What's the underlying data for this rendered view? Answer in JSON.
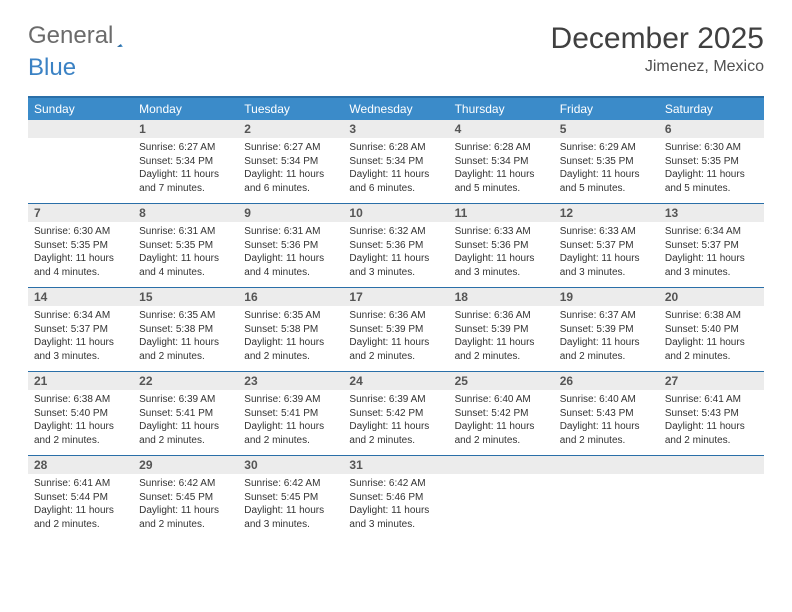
{
  "brand": {
    "word1": "General",
    "word2": "Blue"
  },
  "title": "December 2025",
  "location": "Jimenez, Mexico",
  "colors": {
    "header_bg": "#3b8bc9",
    "header_text": "#ffffff",
    "border": "#2a6fa8",
    "daynum_bg": "#ececec",
    "brand_accent": "#3b82c4"
  },
  "day_headers": [
    "Sunday",
    "Monday",
    "Tuesday",
    "Wednesday",
    "Thursday",
    "Friday",
    "Saturday"
  ],
  "weeks": [
    [
      null,
      {
        "n": "1",
        "sr": "Sunrise: 6:27 AM",
        "ss": "Sunset: 5:34 PM",
        "dl": "Daylight: 11 hours and 7 minutes."
      },
      {
        "n": "2",
        "sr": "Sunrise: 6:27 AM",
        "ss": "Sunset: 5:34 PM",
        "dl": "Daylight: 11 hours and 6 minutes."
      },
      {
        "n": "3",
        "sr": "Sunrise: 6:28 AM",
        "ss": "Sunset: 5:34 PM",
        "dl": "Daylight: 11 hours and 6 minutes."
      },
      {
        "n": "4",
        "sr": "Sunrise: 6:28 AM",
        "ss": "Sunset: 5:34 PM",
        "dl": "Daylight: 11 hours and 5 minutes."
      },
      {
        "n": "5",
        "sr": "Sunrise: 6:29 AM",
        "ss": "Sunset: 5:35 PM",
        "dl": "Daylight: 11 hours and 5 minutes."
      },
      {
        "n": "6",
        "sr": "Sunrise: 6:30 AM",
        "ss": "Sunset: 5:35 PM",
        "dl": "Daylight: 11 hours and 5 minutes."
      }
    ],
    [
      {
        "n": "7",
        "sr": "Sunrise: 6:30 AM",
        "ss": "Sunset: 5:35 PM",
        "dl": "Daylight: 11 hours and 4 minutes."
      },
      {
        "n": "8",
        "sr": "Sunrise: 6:31 AM",
        "ss": "Sunset: 5:35 PM",
        "dl": "Daylight: 11 hours and 4 minutes."
      },
      {
        "n": "9",
        "sr": "Sunrise: 6:31 AM",
        "ss": "Sunset: 5:36 PM",
        "dl": "Daylight: 11 hours and 4 minutes."
      },
      {
        "n": "10",
        "sr": "Sunrise: 6:32 AM",
        "ss": "Sunset: 5:36 PM",
        "dl": "Daylight: 11 hours and 3 minutes."
      },
      {
        "n": "11",
        "sr": "Sunrise: 6:33 AM",
        "ss": "Sunset: 5:36 PM",
        "dl": "Daylight: 11 hours and 3 minutes."
      },
      {
        "n": "12",
        "sr": "Sunrise: 6:33 AM",
        "ss": "Sunset: 5:37 PM",
        "dl": "Daylight: 11 hours and 3 minutes."
      },
      {
        "n": "13",
        "sr": "Sunrise: 6:34 AM",
        "ss": "Sunset: 5:37 PM",
        "dl": "Daylight: 11 hours and 3 minutes."
      }
    ],
    [
      {
        "n": "14",
        "sr": "Sunrise: 6:34 AM",
        "ss": "Sunset: 5:37 PM",
        "dl": "Daylight: 11 hours and 3 minutes."
      },
      {
        "n": "15",
        "sr": "Sunrise: 6:35 AM",
        "ss": "Sunset: 5:38 PM",
        "dl": "Daylight: 11 hours and 2 minutes."
      },
      {
        "n": "16",
        "sr": "Sunrise: 6:35 AM",
        "ss": "Sunset: 5:38 PM",
        "dl": "Daylight: 11 hours and 2 minutes."
      },
      {
        "n": "17",
        "sr": "Sunrise: 6:36 AM",
        "ss": "Sunset: 5:39 PM",
        "dl": "Daylight: 11 hours and 2 minutes."
      },
      {
        "n": "18",
        "sr": "Sunrise: 6:36 AM",
        "ss": "Sunset: 5:39 PM",
        "dl": "Daylight: 11 hours and 2 minutes."
      },
      {
        "n": "19",
        "sr": "Sunrise: 6:37 AM",
        "ss": "Sunset: 5:39 PM",
        "dl": "Daylight: 11 hours and 2 minutes."
      },
      {
        "n": "20",
        "sr": "Sunrise: 6:38 AM",
        "ss": "Sunset: 5:40 PM",
        "dl": "Daylight: 11 hours and 2 minutes."
      }
    ],
    [
      {
        "n": "21",
        "sr": "Sunrise: 6:38 AM",
        "ss": "Sunset: 5:40 PM",
        "dl": "Daylight: 11 hours and 2 minutes."
      },
      {
        "n": "22",
        "sr": "Sunrise: 6:39 AM",
        "ss": "Sunset: 5:41 PM",
        "dl": "Daylight: 11 hours and 2 minutes."
      },
      {
        "n": "23",
        "sr": "Sunrise: 6:39 AM",
        "ss": "Sunset: 5:41 PM",
        "dl": "Daylight: 11 hours and 2 minutes."
      },
      {
        "n": "24",
        "sr": "Sunrise: 6:39 AM",
        "ss": "Sunset: 5:42 PM",
        "dl": "Daylight: 11 hours and 2 minutes."
      },
      {
        "n": "25",
        "sr": "Sunrise: 6:40 AM",
        "ss": "Sunset: 5:42 PM",
        "dl": "Daylight: 11 hours and 2 minutes."
      },
      {
        "n": "26",
        "sr": "Sunrise: 6:40 AM",
        "ss": "Sunset: 5:43 PM",
        "dl": "Daylight: 11 hours and 2 minutes."
      },
      {
        "n": "27",
        "sr": "Sunrise: 6:41 AM",
        "ss": "Sunset: 5:43 PM",
        "dl": "Daylight: 11 hours and 2 minutes."
      }
    ],
    [
      {
        "n": "28",
        "sr": "Sunrise: 6:41 AM",
        "ss": "Sunset: 5:44 PM",
        "dl": "Daylight: 11 hours and 2 minutes."
      },
      {
        "n": "29",
        "sr": "Sunrise: 6:42 AM",
        "ss": "Sunset: 5:45 PM",
        "dl": "Daylight: 11 hours and 2 minutes."
      },
      {
        "n": "30",
        "sr": "Sunrise: 6:42 AM",
        "ss": "Sunset: 5:45 PM",
        "dl": "Daylight: 11 hours and 3 minutes."
      },
      {
        "n": "31",
        "sr": "Sunrise: 6:42 AM",
        "ss": "Sunset: 5:46 PM",
        "dl": "Daylight: 11 hours and 3 minutes."
      },
      null,
      null,
      null
    ]
  ]
}
